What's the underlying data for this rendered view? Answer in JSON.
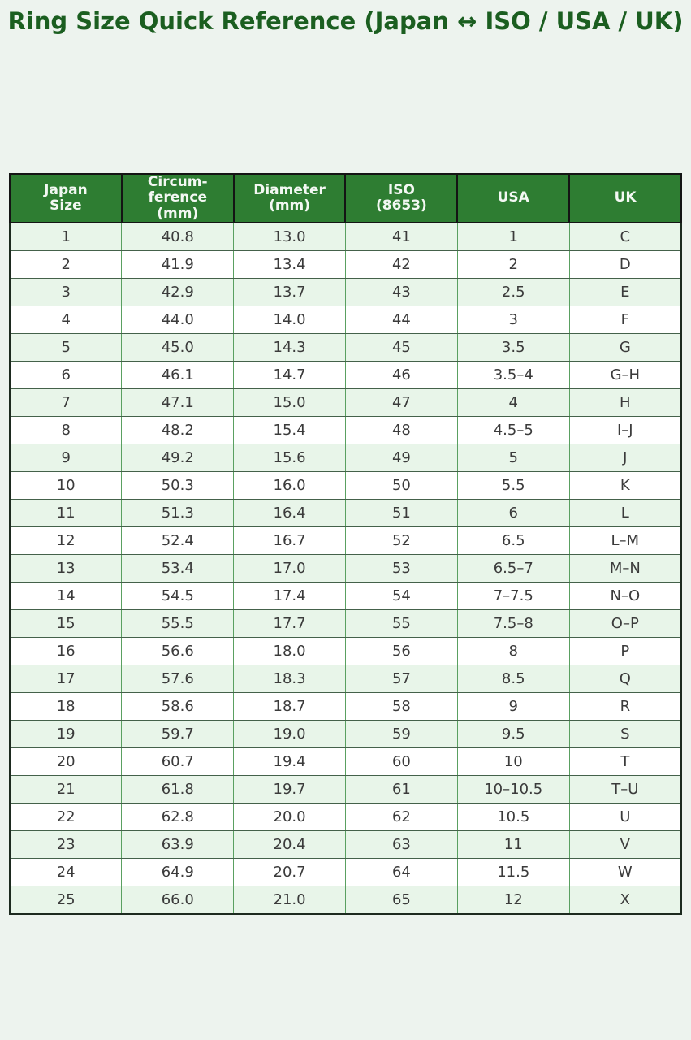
{
  "page": {
    "title": "Ring Size Quick Reference (Japan ↔ ISO / USA / UK)"
  },
  "colors": {
    "title_text": "#1b5e20",
    "header_bg": "#2e7d32",
    "header_text": "#f3f8f3",
    "row_alt_bg": "#e8f5e9",
    "row_bg": "#ffffff",
    "page_bg": "#edf3ee",
    "grid_horizontal": "#44614a",
    "grid_vertical": "#5aa061",
    "cell_text": "#3b3b3b"
  },
  "chart_data": {
    "type": "table",
    "title": "Ring Size Quick Reference (Japan ↔ ISO / USA / UK)",
    "columns": [
      "Japan\nSize",
      "Circum-\nference\n(mm)",
      "Diameter\n(mm)",
      "ISO\n(8653)",
      "USA",
      "UK"
    ],
    "column_keys": [
      "japan-size",
      "circumference-mm",
      "diameter-mm",
      "iso-8653",
      "usa",
      "uk"
    ],
    "layout": {
      "zebra_striping": true,
      "first_data_row_shaded": true,
      "header_style": "green-filled"
    },
    "rows": [
      [
        "1",
        "40.8",
        "13.0",
        "41",
        "1",
        "C"
      ],
      [
        "2",
        "41.9",
        "13.4",
        "42",
        "2",
        "D"
      ],
      [
        "3",
        "42.9",
        "13.7",
        "43",
        "2.5",
        "E"
      ],
      [
        "4",
        "44.0",
        "14.0",
        "44",
        "3",
        "F"
      ],
      [
        "5",
        "45.0",
        "14.3",
        "45",
        "3.5",
        "G"
      ],
      [
        "6",
        "46.1",
        "14.7",
        "46",
        "3.5–4",
        "G–H"
      ],
      [
        "7",
        "47.1",
        "15.0",
        "47",
        "4",
        "H"
      ],
      [
        "8",
        "48.2",
        "15.4",
        "48",
        "4.5–5",
        "I–J"
      ],
      [
        "9",
        "49.2",
        "15.6",
        "49",
        "5",
        "J"
      ],
      [
        "10",
        "50.3",
        "16.0",
        "50",
        "5.5",
        "K"
      ],
      [
        "11",
        "51.3",
        "16.4",
        "51",
        "6",
        "L"
      ],
      [
        "12",
        "52.4",
        "16.7",
        "52",
        "6.5",
        "L–M"
      ],
      [
        "13",
        "53.4",
        "17.0",
        "53",
        "6.5–7",
        "M–N"
      ],
      [
        "14",
        "54.5",
        "17.4",
        "54",
        "7–7.5",
        "N–O"
      ],
      [
        "15",
        "55.5",
        "17.7",
        "55",
        "7.5–8",
        "O–P"
      ],
      [
        "16",
        "56.6",
        "18.0",
        "56",
        "8",
        "P"
      ],
      [
        "17",
        "57.6",
        "18.3",
        "57",
        "8.5",
        "Q"
      ],
      [
        "18",
        "58.6",
        "18.7",
        "58",
        "9",
        "R"
      ],
      [
        "19",
        "59.7",
        "19.0",
        "59",
        "9.5",
        "S"
      ],
      [
        "20",
        "60.7",
        "19.4",
        "60",
        "10",
        "T"
      ],
      [
        "21",
        "61.8",
        "19.7",
        "61",
        "10–10.5",
        "T–U"
      ],
      [
        "22",
        "62.8",
        "20.0",
        "62",
        "10.5",
        "U"
      ],
      [
        "23",
        "63.9",
        "20.4",
        "63",
        "11",
        "V"
      ],
      [
        "24",
        "64.9",
        "20.7",
        "64",
        "11.5",
        "W"
      ],
      [
        "25",
        "66.0",
        "21.0",
        "65",
        "12",
        "X"
      ]
    ]
  }
}
